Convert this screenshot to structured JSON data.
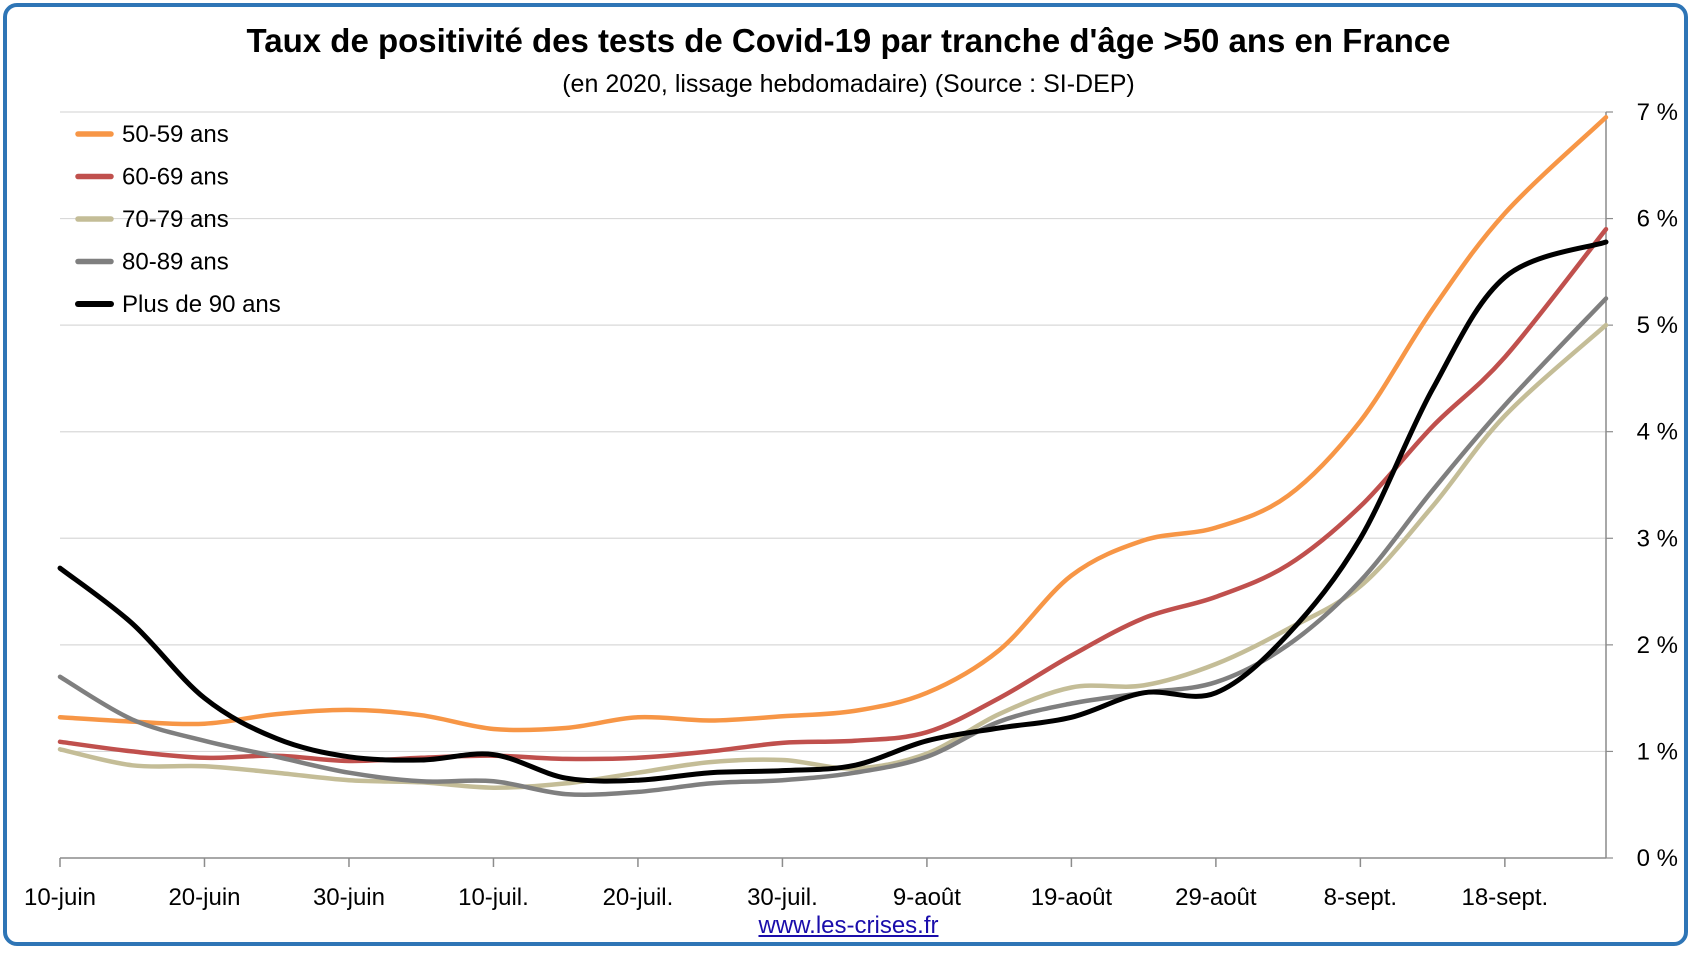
{
  "chart_data": {
    "type": "line",
    "title": "Taux de positivité des tests de Covid-19 par tranche d'âge >50 ans en France",
    "subtitle": "(en 2020, lissage hebdomadaire) (Source : SI-DEP)",
    "source_link": "www.les-crises.fr",
    "x_tick_labels": [
      "10-juin",
      "20-juin",
      "30-juin",
      "10-juil.",
      "20-juil.",
      "30-juil.",
      "9-août",
      "19-août",
      "29-août",
      "8-sept.",
      "18-sept."
    ],
    "x_tick_day_index": [
      0,
      10,
      20,
      30,
      40,
      50,
      60,
      70,
      80,
      90,
      100
    ],
    "x_range": [
      0,
      107
    ],
    "y_axis_position": "right",
    "y_ticks": [
      "0 %",
      "1 %",
      "2 %",
      "3 %",
      "4 %",
      "5 %",
      "6 %",
      "7 %"
    ],
    "y_tick_values": [
      0,
      1,
      2,
      3,
      4,
      5,
      6,
      7
    ],
    "ylim": [
      0,
      7
    ],
    "grid": "horizontal",
    "legend_position": "top-left",
    "series": [
      {
        "name": "50-59 ans",
        "color": "#f79646",
        "x": [
          0,
          5,
          10,
          15,
          20,
          25,
          30,
          35,
          40,
          45,
          50,
          55,
          60,
          65,
          70,
          75,
          80,
          85,
          90,
          95,
          100,
          107
        ],
        "y": [
          1.32,
          1.28,
          1.26,
          1.35,
          1.39,
          1.34,
          1.21,
          1.22,
          1.32,
          1.29,
          1.33,
          1.38,
          1.55,
          1.95,
          2.65,
          2.98,
          3.1,
          3.4,
          4.1,
          5.15,
          6.05,
          6.95
        ]
      },
      {
        "name": "60-69 ans",
        "color": "#c0504d",
        "x": [
          0,
          5,
          10,
          15,
          20,
          25,
          30,
          35,
          40,
          45,
          50,
          55,
          60,
          65,
          70,
          75,
          80,
          85,
          90,
          95,
          100,
          107
        ],
        "y": [
          1.09,
          1.0,
          0.94,
          0.96,
          0.91,
          0.94,
          0.96,
          0.93,
          0.94,
          1.0,
          1.08,
          1.1,
          1.18,
          1.5,
          1.9,
          2.25,
          2.45,
          2.75,
          3.3,
          4.05,
          4.7,
          5.9
        ]
      },
      {
        "name": "70-79 ans",
        "color": "#c4bd97",
        "x": [
          0,
          5,
          10,
          15,
          20,
          25,
          30,
          35,
          40,
          45,
          50,
          55,
          60,
          65,
          70,
          75,
          80,
          85,
          90,
          95,
          100,
          107
        ],
        "y": [
          1.02,
          0.87,
          0.86,
          0.8,
          0.73,
          0.71,
          0.66,
          0.7,
          0.8,
          0.9,
          0.92,
          0.84,
          0.98,
          1.35,
          1.6,
          1.62,
          1.82,
          2.15,
          2.55,
          3.3,
          4.15,
          5.0
        ]
      },
      {
        "name": "80-89 ans",
        "color": "#7f7f7f",
        "x": [
          0,
          5,
          10,
          15,
          20,
          25,
          30,
          35,
          40,
          45,
          50,
          55,
          60,
          65,
          70,
          75,
          80,
          85,
          90,
          95,
          100,
          107
        ],
        "y": [
          1.7,
          1.3,
          1.1,
          0.95,
          0.8,
          0.72,
          0.72,
          0.6,
          0.62,
          0.7,
          0.73,
          0.8,
          0.95,
          1.28,
          1.45,
          1.55,
          1.65,
          2.0,
          2.6,
          3.45,
          4.25,
          5.25
        ]
      },
      {
        "name": "Plus de 90 ans",
        "color": "#000000",
        "x": [
          0,
          5,
          10,
          15,
          20,
          25,
          30,
          35,
          40,
          45,
          50,
          55,
          60,
          65,
          70,
          75,
          80,
          85,
          90,
          95,
          100,
          107
        ],
        "y": [
          2.72,
          2.2,
          1.5,
          1.12,
          0.95,
          0.92,
          0.97,
          0.75,
          0.73,
          0.8,
          0.82,
          0.87,
          1.1,
          1.22,
          1.32,
          1.55,
          1.55,
          2.1,
          3.0,
          4.4,
          5.45,
          5.78
        ]
      }
    ]
  }
}
